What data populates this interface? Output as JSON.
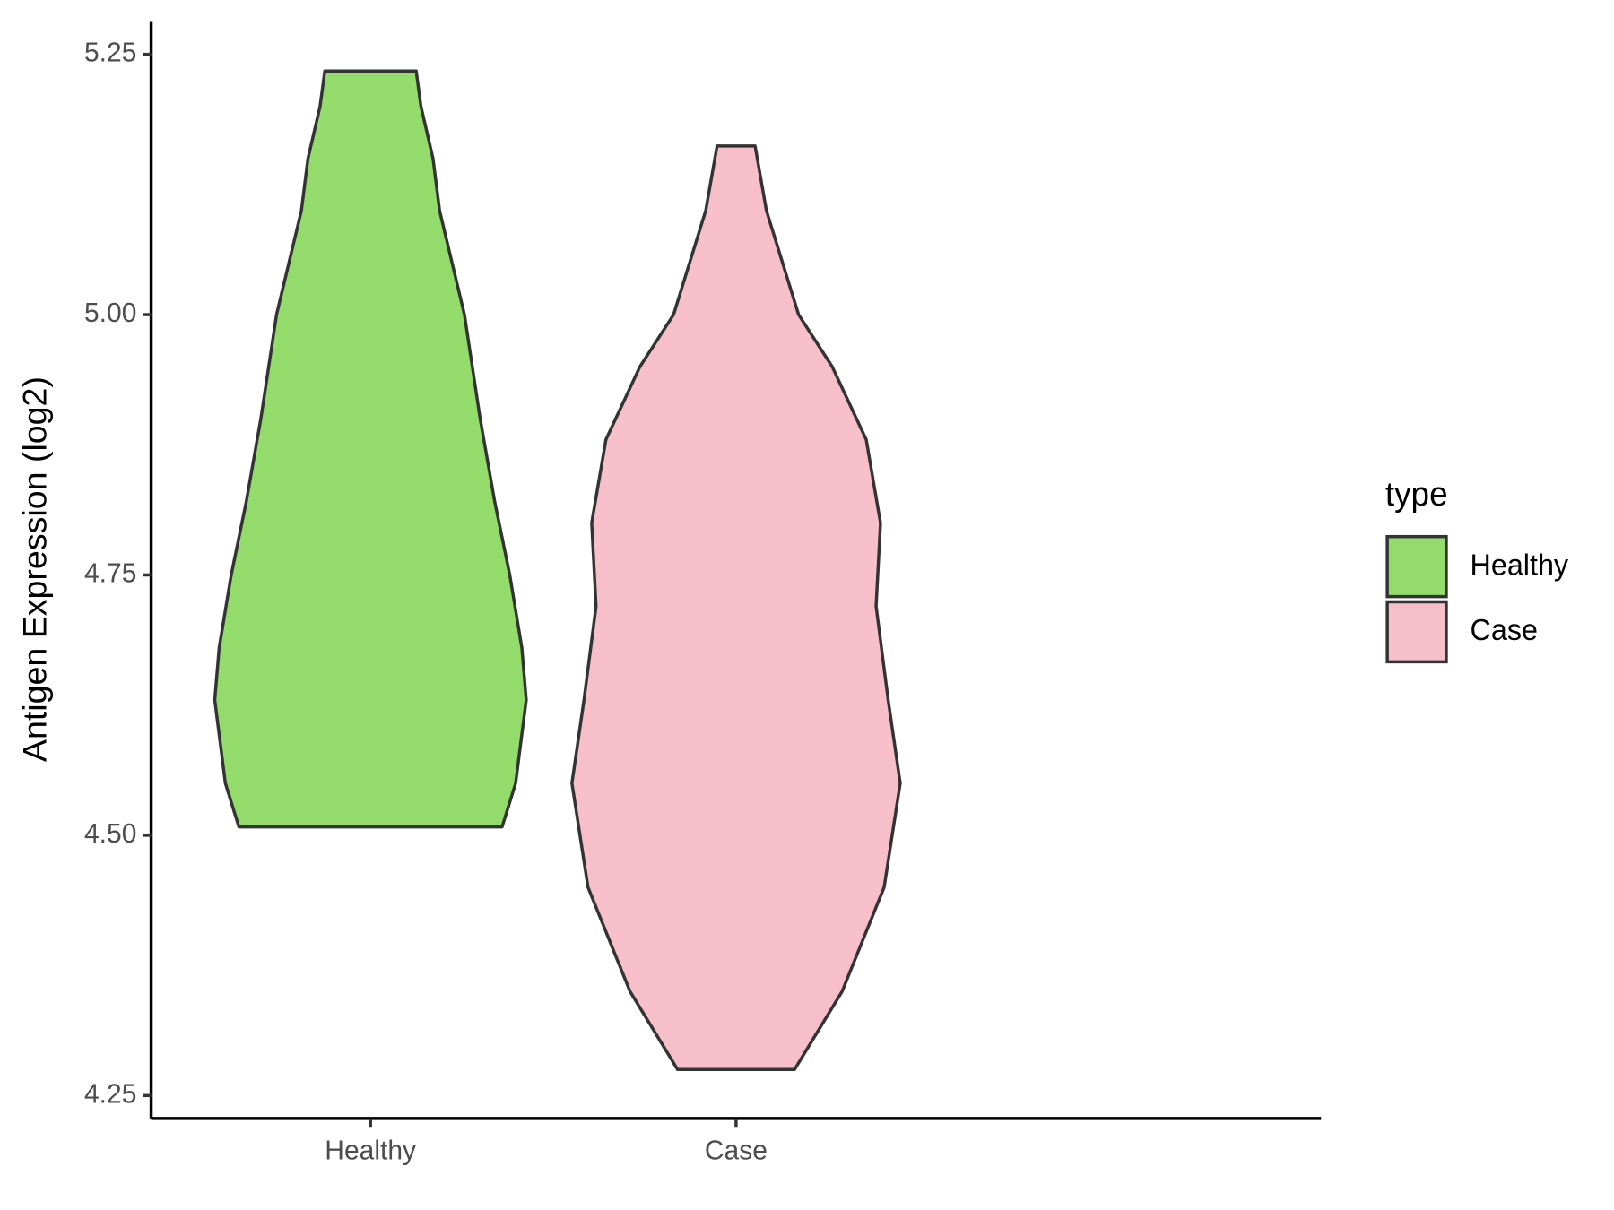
{
  "chart_data": {
    "type": "violin",
    "y_label": "Antigen Expression (log2)",
    "categories": [
      "Healthy",
      "Case"
    ],
    "legend_title": "type",
    "legend_position": "right",
    "series": [
      {
        "name": "Healthy",
        "color": "#93dc6b",
        "y": [
          5.234,
          5.2,
          5.15,
          5.1,
          5.0,
          4.9,
          4.82,
          4.75,
          4.68,
          4.63,
          4.55,
          4.508
        ],
        "width": [
          0.125,
          0.138,
          0.171,
          0.189,
          0.257,
          0.3,
          0.34,
          0.381,
          0.414,
          0.426,
          0.397,
          0.36
        ]
      },
      {
        "name": "Case",
        "color": "#f7bfca",
        "y": [
          5.162,
          5.1,
          5.0,
          4.95,
          4.88,
          4.8,
          4.72,
          4.63,
          4.55,
          4.45,
          4.35,
          4.275
        ],
        "width": [
          0.052,
          0.083,
          0.171,
          0.263,
          0.356,
          0.395,
          0.383,
          0.416,
          0.449,
          0.405,
          0.29,
          0.16
        ]
      }
    ],
    "ylim": [
      4.228,
      5.282
    ],
    "yticks": [
      {
        "value": 4.25,
        "label": "4.25"
      },
      {
        "value": 4.5,
        "label": "4.50"
      },
      {
        "value": 4.75,
        "label": "4.75"
      },
      {
        "value": 5,
        "label": "5.00"
      },
      {
        "value": 5.25,
        "label": "5.25"
      }
    ],
    "grid": false
  }
}
